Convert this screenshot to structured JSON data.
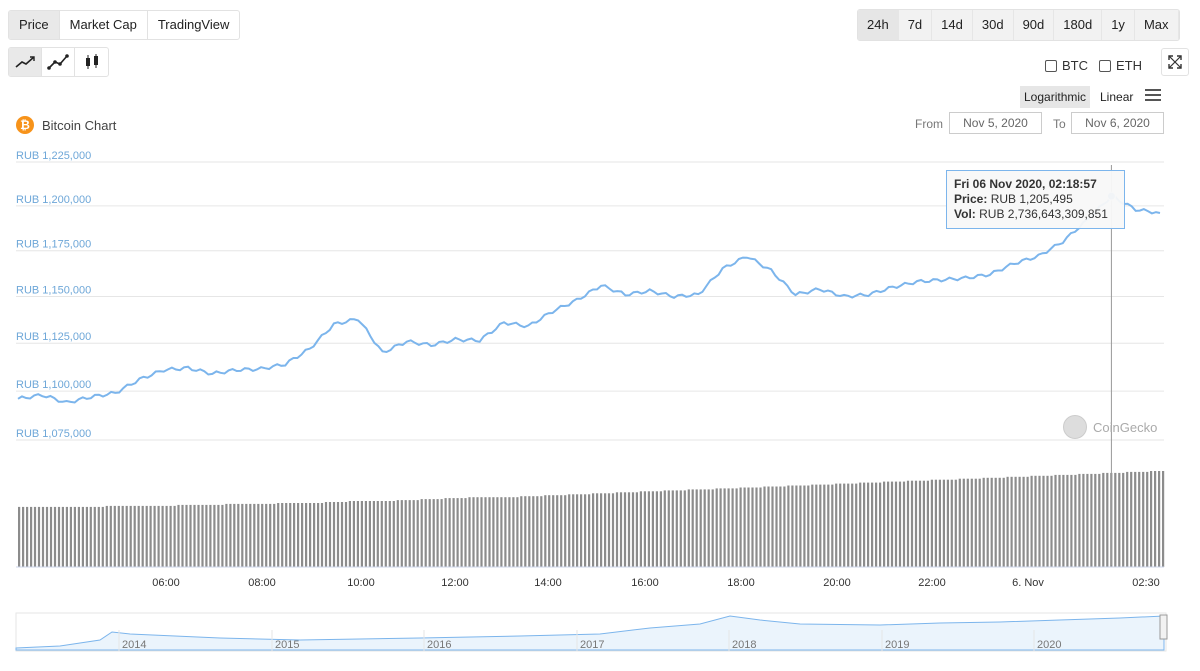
{
  "tabs": {
    "chart_types": [
      {
        "label": "Price",
        "active": true
      },
      {
        "label": "Market Cap",
        "active": false
      },
      {
        "label": "TradingView",
        "active": false
      }
    ],
    "ranges": [
      {
        "label": "24h",
        "active": true
      },
      {
        "label": "7d",
        "active": false
      },
      {
        "label": "14d",
        "active": false
      },
      {
        "label": "30d",
        "active": false
      },
      {
        "label": "90d",
        "active": false
      },
      {
        "label": "180d",
        "active": false
      },
      {
        "label": "1y",
        "active": false
      },
      {
        "label": "Max",
        "active": false
      }
    ],
    "styles": [
      "line-chart-icon",
      "ohlc-line-icon",
      "candlestick-icon"
    ]
  },
  "compare": {
    "btc": "BTC",
    "eth": "ETH"
  },
  "scale": {
    "logarithmic": "Logarithmic",
    "linear": "Linear",
    "active": "logarithmic"
  },
  "title": "Bitcoin Chart",
  "date_range": {
    "from_label": "From",
    "from": "Nov 5, 2020",
    "to_label": "To",
    "to": "Nov 6, 2020"
  },
  "tooltip": {
    "time": "Fri 06 Nov 2020, 02:18:57",
    "price_label": "Price:",
    "price": "RUB 1,205,495",
    "vol_label": "Vol:",
    "vol": "RUB 2,736,643,309,851"
  },
  "watermark": "CoinGecko",
  "colors": {
    "line": "#7cb5ec",
    "volume": "#8c8c8c",
    "brand": "#f7931a"
  },
  "chart_data": {
    "type": "line",
    "series": [
      {
        "x": [
          "04:00",
          "04:30",
          "05:00",
          "05:30",
          "06:00",
          "06:30",
          "07:00",
          "07:30",
          "08:00",
          "08:30",
          "09:00",
          "09:30",
          "10:00",
          "10:30",
          "11:00",
          "11:30",
          "12:00",
          "12:30",
          "13:00",
          "13:30",
          "14:00",
          "14:30",
          "15:00",
          "15:30",
          "16:00",
          "16:30",
          "17:00",
          "17:30",
          "18:00",
          "18:30",
          "19:00",
          "19:30",
          "20:00",
          "20:30",
          "21:00",
          "21:30",
          "22:00",
          "22:30",
          "23:00",
          "23:30",
          "00:00",
          "00:30",
          "01:00",
          "01:30",
          "02:00",
          "02:18",
          "02:30",
          "02:45"
        ],
        "values": [
          1096000,
          1098000,
          1094000,
          1097000,
          1099000,
          1106000,
          1111000,
          1112000,
          1109000,
          1111000,
          1111500,
          1114000,
          1122000,
          1135000,
          1138000,
          1120000,
          1126000,
          1124000,
          1127000,
          1126500,
          1136000,
          1134000,
          1142000,
          1148000,
          1156000,
          1151000,
          1153000,
          1150000,
          1151000,
          1165000,
          1172000,
          1164000,
          1151000,
          1154000,
          1150000,
          1151000,
          1155000,
          1158000,
          1159000,
          1160000,
          1162000,
          1168000,
          1172000,
          1180000,
          1192000,
          1205495,
          1198000,
          1196000
        ]
      }
    ],
    "y_ticks": [
      "RUB 1,225,000",
      "RUB 1,200,000",
      "RUB 1,175,000",
      "RUB 1,150,000",
      "RUB 1,125,000",
      "RUB 1,100,000",
      "RUB 1,075,000"
    ],
    "y_tick_values": [
      1225000,
      1200000,
      1175000,
      1150000,
      1125000,
      1100000,
      1075000
    ],
    "x_ticks": [
      "06:00",
      "08:00",
      "10:00",
      "12:00",
      "14:00",
      "16:00",
      "18:00",
      "20:00",
      "22:00",
      "6. Nov",
      "02:30"
    ],
    "volume_level": [
      0.62,
      0.62,
      0.62,
      0.62,
      0.63,
      0.63,
      0.63,
      0.64,
      0.64,
      0.65,
      0.65,
      0.66,
      0.66,
      0.67,
      0.68,
      0.68,
      0.69,
      0.7,
      0.71,
      0.72,
      0.72,
      0.73,
      0.74,
      0.75,
      0.76,
      0.77,
      0.78,
      0.79,
      0.8,
      0.81,
      0.82,
      0.83,
      0.84,
      0.85,
      0.86,
      0.87,
      0.88,
      0.89,
      0.9,
      0.91,
      0.92,
      0.93,
      0.94,
      0.95,
      0.96,
      0.97,
      0.98,
      0.99
    ],
    "navigator_ticks": [
      "2014",
      "2015",
      "2016",
      "2017",
      "2018",
      "2019",
      "2020"
    ],
    "scale": "logarithmic",
    "grid": true
  }
}
